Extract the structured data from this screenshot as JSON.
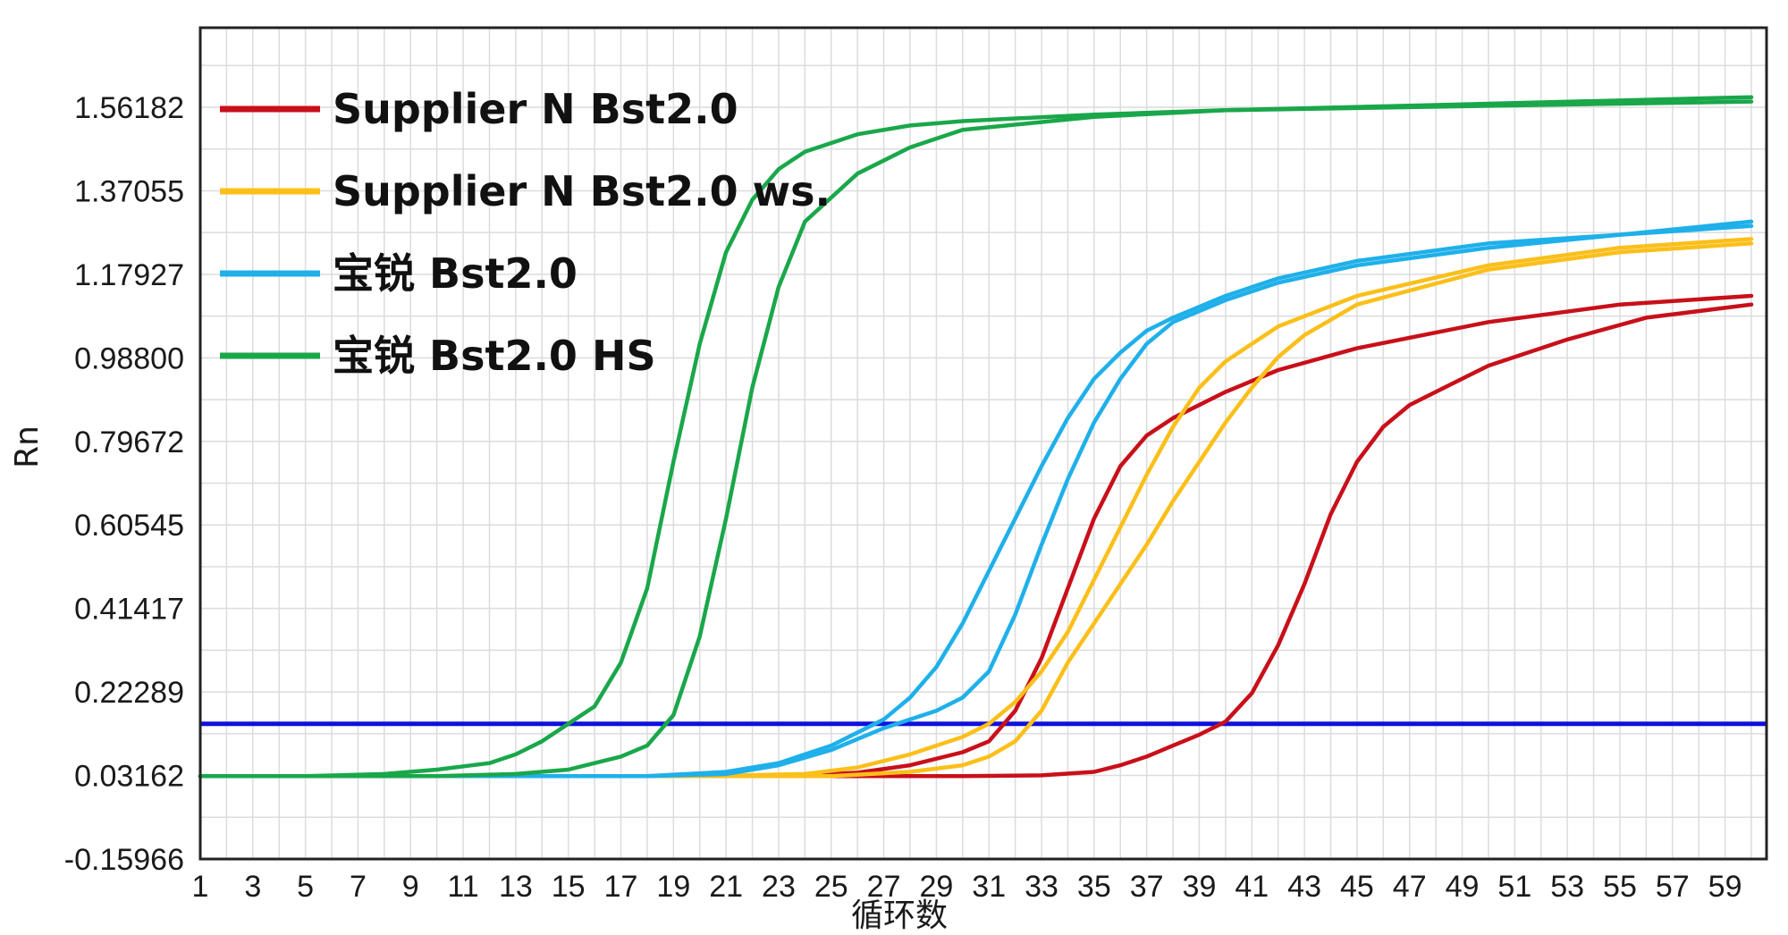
{
  "chart_data": {
    "type": "line",
    "xlabel": "循环数",
    "ylabel": "Rn",
    "xlim": [
      1,
      60
    ],
    "ylim": [
      -0.15966,
      1.7
    ],
    "x_ticks": [
      "1",
      "3",
      "5",
      "7",
      "9",
      "11",
      "13",
      "15",
      "17",
      "19",
      "21",
      "23",
      "25",
      "27",
      "29",
      "31",
      "33",
      "35",
      "37",
      "39",
      "41",
      "43",
      "45",
      "47",
      "49",
      "51",
      "53",
      "55",
      "57",
      "59"
    ],
    "y_ticks": [
      "-0.15966",
      "0.03162",
      "0.22289",
      "0.41417",
      "0.60545",
      "0.79672",
      "0.98800",
      "1.17927",
      "1.37055",
      "1.56182"
    ],
    "grid": true,
    "legend_position": "top-left",
    "threshold": {
      "value": 0.15,
      "color": "#1010e0"
    },
    "series": [
      {
        "name": "Supplier N Bst2.0",
        "color": "#c8101a",
        "x": [
          1,
          5,
          10,
          15,
          20,
          24,
          26,
          28,
          30,
          31,
          32,
          33,
          34,
          35,
          36,
          37,
          38,
          40,
          42,
          45,
          50,
          55,
          60
        ],
        "y": [
          0.03,
          0.03,
          0.03,
          0.03,
          0.03,
          0.032,
          0.038,
          0.055,
          0.085,
          0.11,
          0.18,
          0.3,
          0.46,
          0.62,
          0.74,
          0.81,
          0.85,
          0.91,
          0.96,
          1.01,
          1.07,
          1.11,
          1.13
        ]
      },
      {
        "name": "Supplier N Bst2.0",
        "color": "#c8101a",
        "x": [
          1,
          10,
          20,
          25,
          30,
          33,
          35,
          36,
          37,
          38,
          39,
          40,
          41,
          42,
          43,
          44,
          45,
          46,
          47,
          48,
          50,
          53,
          56,
          60
        ],
        "y": [
          0.03,
          0.03,
          0.03,
          0.03,
          0.03,
          0.032,
          0.04,
          0.055,
          0.075,
          0.1,
          0.125,
          0.155,
          0.22,
          0.33,
          0.47,
          0.63,
          0.75,
          0.83,
          0.88,
          0.91,
          0.97,
          1.03,
          1.08,
          1.11
        ]
      },
      {
        "name": "Supplier N Bst2.0 ws.",
        "color": "#fbbf1a",
        "x": [
          1,
          10,
          20,
          24,
          26,
          28,
          30,
          31,
          32,
          33,
          34,
          35,
          36,
          37,
          38,
          39,
          40,
          42,
          45,
          50,
          55,
          60
        ],
        "y": [
          0.03,
          0.03,
          0.03,
          0.035,
          0.05,
          0.08,
          0.12,
          0.15,
          0.2,
          0.27,
          0.36,
          0.48,
          0.6,
          0.72,
          0.83,
          0.92,
          0.98,
          1.06,
          1.13,
          1.2,
          1.24,
          1.26
        ]
      },
      {
        "name": "Supplier N Bst2.0 ws.",
        "color": "#fbbf1a",
        "x": [
          1,
          10,
          20,
          25,
          28,
          30,
          31,
          32,
          33,
          34,
          35,
          36,
          37,
          38,
          39,
          40,
          41,
          42,
          43,
          45,
          50,
          55,
          60
        ],
        "y": [
          0.03,
          0.03,
          0.03,
          0.03,
          0.04,
          0.055,
          0.075,
          0.11,
          0.18,
          0.29,
          0.38,
          0.47,
          0.56,
          0.66,
          0.75,
          0.84,
          0.92,
          0.99,
          1.04,
          1.11,
          1.19,
          1.23,
          1.25
        ]
      },
      {
        "name": "宝锐 Bst2.0",
        "color": "#1fb0ea",
        "x": [
          1,
          10,
          18,
          21,
          23,
          25,
          27,
          28,
          29,
          30,
          31,
          32,
          33,
          34,
          35,
          36,
          37,
          38,
          40,
          42,
          45,
          50,
          55,
          60
        ],
        "y": [
          0.03,
          0.03,
          0.03,
          0.04,
          0.06,
          0.1,
          0.16,
          0.21,
          0.28,
          0.38,
          0.5,
          0.62,
          0.74,
          0.85,
          0.94,
          1.0,
          1.05,
          1.08,
          1.13,
          1.17,
          1.21,
          1.25,
          1.27,
          1.29
        ]
      },
      {
        "name": "宝锐 Bst2.0",
        "color": "#1fb0ea",
        "x": [
          1,
          10,
          18,
          21,
          23,
          25,
          27,
          29,
          30,
          31,
          32,
          33,
          34,
          35,
          36,
          37,
          38,
          40,
          42,
          45,
          50,
          55,
          60
        ],
        "y": [
          0.03,
          0.03,
          0.03,
          0.035,
          0.055,
          0.09,
          0.14,
          0.18,
          0.21,
          0.27,
          0.4,
          0.56,
          0.71,
          0.84,
          0.94,
          1.02,
          1.07,
          1.12,
          1.16,
          1.2,
          1.24,
          1.27,
          1.3
        ]
      },
      {
        "name": "宝锐 Bst2.0 HS",
        "color": "#1aa74a",
        "x": [
          1,
          5,
          8,
          10,
          12,
          13,
          14,
          15,
          16,
          17,
          18,
          19,
          20,
          21,
          22,
          23,
          24,
          26,
          28,
          30,
          35,
          40,
          50,
          60
        ],
        "y": [
          0.03,
          0.03,
          0.035,
          0.045,
          0.06,
          0.08,
          0.11,
          0.15,
          0.19,
          0.29,
          0.46,
          0.75,
          1.02,
          1.23,
          1.35,
          1.42,
          1.46,
          1.5,
          1.52,
          1.53,
          1.545,
          1.555,
          1.565,
          1.575
        ]
      },
      {
        "name": "宝锐 Bst2.0 HS",
        "color": "#1aa74a",
        "x": [
          1,
          5,
          10,
          13,
          15,
          16,
          17,
          18,
          19,
          20,
          21,
          22,
          23,
          24,
          26,
          28,
          30,
          35,
          40,
          50,
          60
        ],
        "y": [
          0.03,
          0.03,
          0.03,
          0.035,
          0.045,
          0.06,
          0.075,
          0.1,
          0.17,
          0.35,
          0.62,
          0.92,
          1.15,
          1.3,
          1.41,
          1.47,
          1.51,
          1.54,
          1.555,
          1.57,
          1.585
        ]
      }
    ]
  }
}
